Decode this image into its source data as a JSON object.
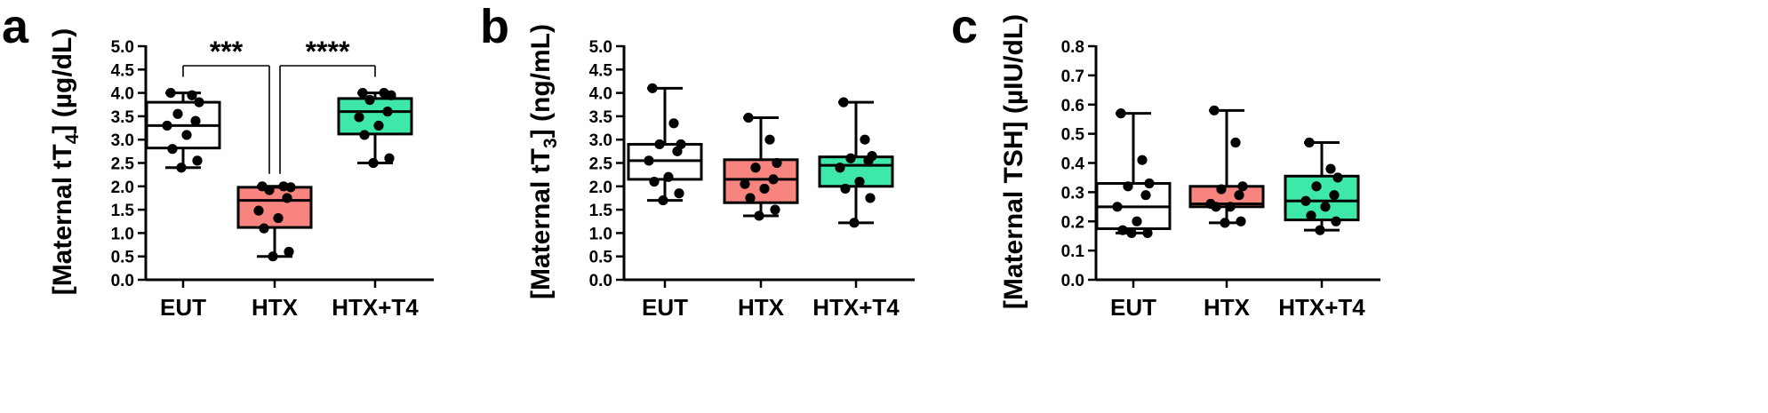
{
  "colors": {
    "EUT": "#ffffff",
    "HTX": "#f8847f",
    "HTX+T4": "#3ee8a8",
    "ink": "#000000"
  },
  "chart_data": [
    {
      "panel": "a",
      "type": "box",
      "ylabel_parts": [
        "[Maternal tT",
        "4",
        "] (µg/dL)"
      ],
      "ylim": [
        0,
        5
      ],
      "yticks": [
        "0.0",
        "0.5",
        "1.0",
        "1.5",
        "2.0",
        "2.5",
        "3.0",
        "3.5",
        "4.0",
        "4.5",
        "5.0"
      ],
      "categories": [
        "EUT",
        "HTX",
        "HTX+T4"
      ],
      "boxes": [
        {
          "min": 2.4,
          "q1": 2.82,
          "median": 3.3,
          "q3": 3.8,
          "max": 4.0
        },
        {
          "min": 0.5,
          "q1": 1.12,
          "median": 1.7,
          "q3": 1.98,
          "max": 2.0
        },
        {
          "min": 2.5,
          "q1": 3.12,
          "median": 3.6,
          "q3": 3.88,
          "max": 4.0
        }
      ],
      "points": [
        [
          4.0,
          3.95,
          3.8,
          3.55,
          3.4,
          3.3,
          3.1,
          2.8,
          2.55,
          2.4
        ],
        [
          2.0,
          2.0,
          1.98,
          1.92,
          1.75,
          1.48,
          1.32,
          1.1,
          0.6,
          0.5
        ],
        [
          4.0,
          4.0,
          3.95,
          3.85,
          3.6,
          3.48,
          3.3,
          3.1,
          2.6,
          2.5
        ]
      ],
      "comparisons": [
        {
          "from": 0,
          "to": 1,
          "label": "***"
        },
        {
          "from": 1,
          "to": 2,
          "label": "****"
        }
      ]
    },
    {
      "panel": "b",
      "type": "box",
      "ylabel_parts": [
        "[Maternal tT",
        "3",
        "] (ng/mL)"
      ],
      "ylim": [
        0,
        5
      ],
      "yticks": [
        "0.0",
        "0.5",
        "1.0",
        "1.5",
        "2.0",
        "2.5",
        "3.0",
        "3.5",
        "4.0",
        "4.5",
        "5.0"
      ],
      "categories": [
        "EUT",
        "HTX",
        "HTX+T4"
      ],
      "boxes": [
        {
          "min": 1.7,
          "q1": 2.15,
          "median": 2.55,
          "q3": 2.9,
          "max": 4.1
        },
        {
          "min": 1.37,
          "q1": 1.65,
          "median": 2.15,
          "q3": 2.57,
          "max": 3.47
        },
        {
          "min": 1.22,
          "q1": 2.0,
          "median": 2.45,
          "q3": 2.63,
          "max": 3.8
        }
      ],
      "points": [
        [
          4.1,
          3.35,
          2.9,
          2.9,
          2.75,
          2.55,
          2.2,
          2.1,
          1.85,
          1.7
        ],
        [
          3.47,
          3.0,
          2.5,
          2.4,
          2.15,
          2.05,
          1.95,
          1.75,
          1.5,
          1.37
        ],
        [
          3.8,
          3.0,
          2.65,
          2.6,
          2.55,
          2.4,
          2.1,
          1.95,
          1.75,
          1.22
        ]
      ],
      "comparisons": []
    },
    {
      "panel": "c",
      "type": "box",
      "ylabel_parts": [
        "[Maternal TSH] (µIU/dL)"
      ],
      "ylim": [
        0,
        0.8
      ],
      "yticks": [
        "0.0",
        "0.1",
        "0.2",
        "0.3",
        "0.4",
        "0.5",
        "0.6",
        "0.7",
        "0.8"
      ],
      "categories": [
        "EUT",
        "HTX",
        "HTX+T4"
      ],
      "boxes": [
        {
          "min": 0.16,
          "q1": 0.175,
          "median": 0.25,
          "q3": 0.33,
          "max": 0.57
        },
        {
          "min": 0.195,
          "q1": 0.25,
          "median": 0.26,
          "q3": 0.32,
          "max": 0.58
        },
        {
          "min": 0.17,
          "q1": 0.205,
          "median": 0.27,
          "q3": 0.355,
          "max": 0.47
        }
      ],
      "points": [
        [
          0.57,
          0.41,
          0.33,
          0.32,
          0.29,
          0.25,
          0.2,
          0.17,
          0.16,
          0.16
        ],
        [
          0.58,
          0.47,
          0.32,
          0.31,
          0.29,
          0.26,
          0.25,
          0.25,
          0.2,
          0.195
        ],
        [
          0.47,
          0.38,
          0.35,
          0.32,
          0.29,
          0.27,
          0.25,
          0.22,
          0.2,
          0.17
        ]
      ],
      "comparisons": []
    }
  ]
}
